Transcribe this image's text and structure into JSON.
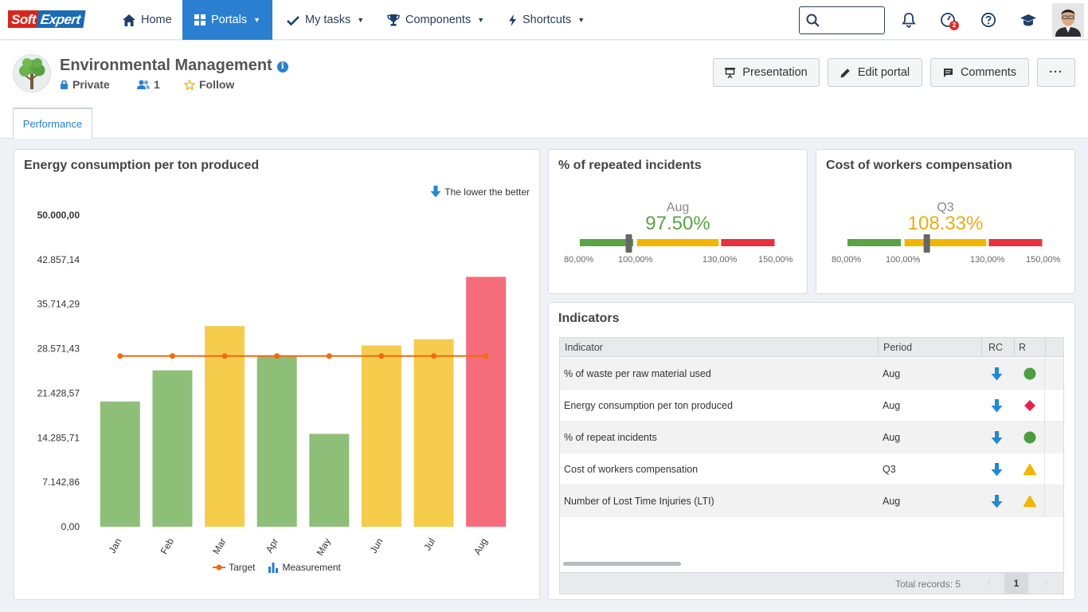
{
  "nav": {
    "logo_left": "Soft",
    "logo_right": "Expert",
    "home": "Home",
    "portals": "Portals",
    "my_tasks": "My tasks",
    "components": "Components",
    "shortcuts": "Shortcuts",
    "notification_badge": "2"
  },
  "header": {
    "title": "Environmental Management",
    "privacy": "Private",
    "members": "1",
    "follow": "Follow",
    "buttons": {
      "presentation": "Presentation",
      "edit_portal": "Edit portal",
      "comments": "Comments",
      "more": "···"
    }
  },
  "tabs": {
    "performance": "Performance"
  },
  "energy_chart": {
    "title": "Energy consumption per ton produced",
    "hint": "The lower the better",
    "legend": {
      "target": "Target",
      "measurement": "Measurement"
    }
  },
  "chart_data": {
    "type": "bar",
    "title": "Energy consumption per ton produced",
    "categories": [
      "Jan",
      "Feb",
      "Mar",
      "Apr",
      "May",
      "Jun",
      "Jul",
      "Aug"
    ],
    "yticks": [
      "0,00",
      "7.142,86",
      "14.285,71",
      "21.428,57",
      "28.571,43",
      "35.714,29",
      "42.857,14",
      "50.000,00"
    ],
    "ylim": [
      0,
      50000
    ],
    "series": [
      {
        "name": "Measurement",
        "type": "bar",
        "values": [
          20100,
          25100,
          32200,
          27400,
          14900,
          29100,
          30100,
          40100
        ],
        "colors": [
          "#8dbf78",
          "#8dbf78",
          "#f6cc4d",
          "#8dbf78",
          "#8dbf78",
          "#f6cc4d",
          "#f6cc4d",
          "#f56c7a"
        ]
      },
      {
        "name": "Target",
        "type": "line",
        "values": [
          27400,
          27400,
          27400,
          27400,
          27400,
          27400,
          27400,
          27400
        ],
        "color": "#f26a10"
      }
    ],
    "legend_position": "bottom",
    "grid": false
  },
  "gauge_incidents": {
    "title": "% of repeated incidents",
    "period": "Aug",
    "value": "97.50%",
    "value_color": "#5aa346",
    "labels": [
      "80,00%",
      "100,00%",
      "130,00%",
      "150,00%"
    ],
    "pointer_fraction": 0.25
  },
  "gauge_compensation": {
    "title": "Cost of workers compensation",
    "period": "Q3",
    "value": "108.33%",
    "value_color": "#e8ad12",
    "labels": [
      "80,00%",
      "100,00%",
      "130,00%",
      "150,00%"
    ],
    "pointer_fraction": 0.405
  },
  "indicators": {
    "title": "Indicators",
    "columns": [
      "Indicator",
      "Period",
      "RC",
      "R"
    ],
    "rows": [
      {
        "indicator": "% of waste per raw material used",
        "period": "Aug",
        "rc": "down-arrow-icon",
        "r": "green-circle"
      },
      {
        "indicator": "Energy consumption per ton produced",
        "period": "Aug",
        "rc": "down-arrow-icon",
        "r": "red-diamond"
      },
      {
        "indicator": "% of repeat incidents",
        "period": "Aug",
        "rc": "down-arrow-icon",
        "r": "green-circle"
      },
      {
        "indicator": "Cost of workers compensation",
        "period": "Q3",
        "rc": "down-arrow-icon",
        "r": "yellow-triangle"
      },
      {
        "indicator": "Number of Lost Time Injuries (LTI)",
        "period": "Aug",
        "rc": "down-arrow-icon",
        "r": "yellow-triangle"
      }
    ],
    "total_records": "Total records: 5",
    "page": "1"
  }
}
